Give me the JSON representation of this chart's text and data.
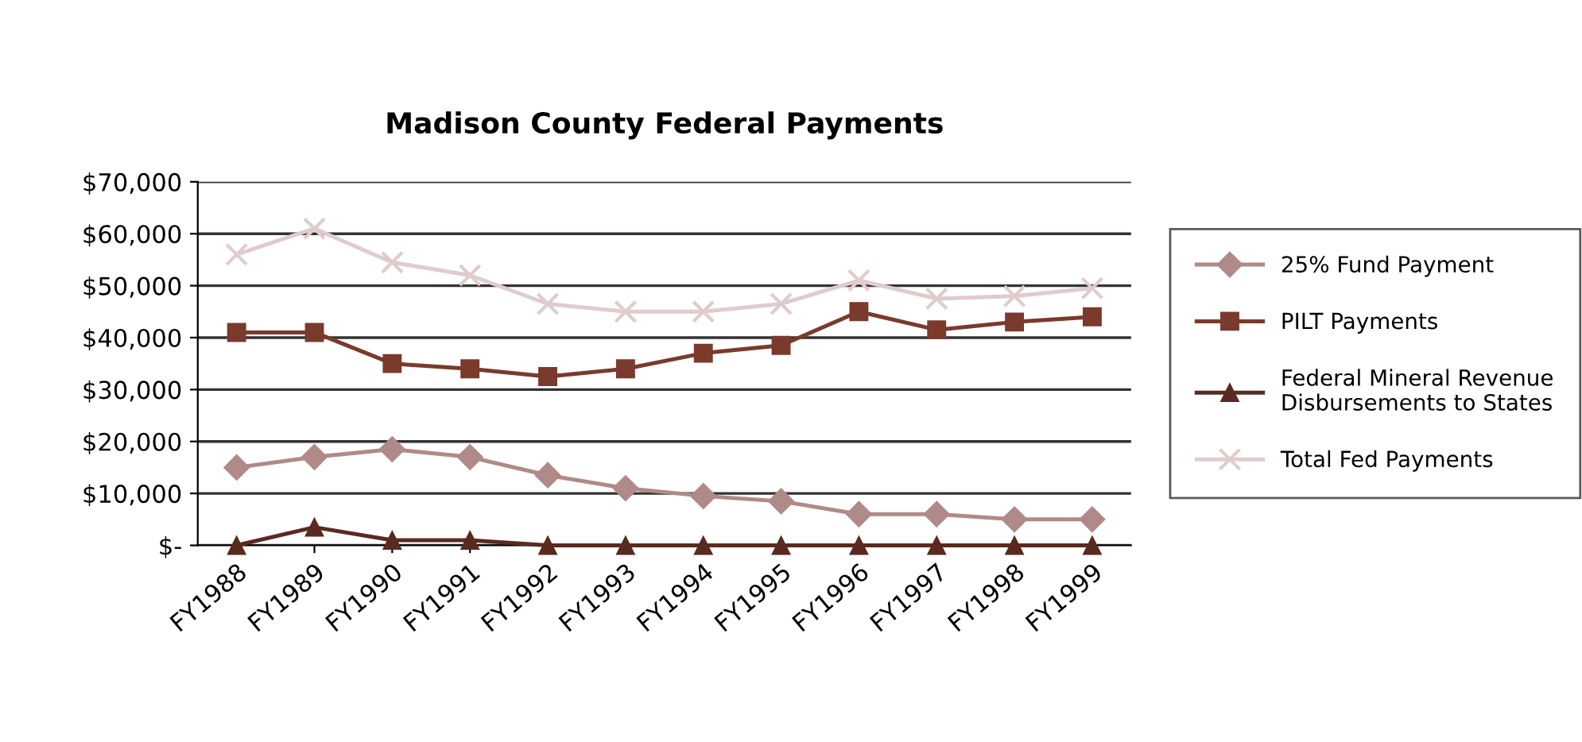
{
  "chart_data": {
    "type": "line",
    "title": "Madison County Federal Payments",
    "categories": [
      "FY1988",
      "FY1989",
      "FY1990",
      "FY1991",
      "FY1992",
      "FY1993",
      "FY1994",
      "FY1995",
      "FY1996",
      "FY1997",
      "FY1998",
      "FY1999"
    ],
    "series": [
      {
        "name": "25% Fund Payment",
        "color": "#b08a88",
        "marker": "diamond",
        "values": [
          15000,
          17000,
          18500,
          17000,
          13500,
          11000,
          9500,
          8500,
          6000,
          6000,
          5000,
          5000
        ]
      },
      {
        "name": "PILT Payments",
        "color": "#7a3a2c",
        "marker": "square",
        "values": [
          41000,
          41000,
          35000,
          34000,
          32500,
          34000,
          37000,
          38500,
          45000,
          41500,
          43000,
          44000
        ]
      },
      {
        "name": "Federal Mineral Revenue\nDisbursements to States",
        "color": "#5a2a20",
        "marker": "triangle",
        "values": [
          0,
          3500,
          1000,
          1000,
          0,
          0,
          0,
          0,
          0,
          0,
          0,
          0
        ]
      },
      {
        "name": "Total Fed Payments",
        "color": "#e0cccc",
        "marker": "cross",
        "values": [
          56000,
          61000,
          54500,
          52000,
          46500,
          45000,
          45000,
          46500,
          51000,
          47500,
          48000,
          49500
        ]
      }
    ],
    "ylim": [
      0,
      70000
    ],
    "yticks": [
      {
        "value": 0,
        "label": "$-"
      },
      {
        "value": 10000,
        "label": "$10,000"
      },
      {
        "value": 20000,
        "label": "$20,000"
      },
      {
        "value": 30000,
        "label": "$30,000"
      },
      {
        "value": 40000,
        "label": "$40,000"
      },
      {
        "value": 50000,
        "label": "$50,000"
      },
      {
        "value": 60000,
        "label": "$60,000"
      },
      {
        "value": 70000,
        "label": "$70,000"
      }
    ],
    "grid": "y",
    "legend": "right",
    "line_style": "solid"
  }
}
